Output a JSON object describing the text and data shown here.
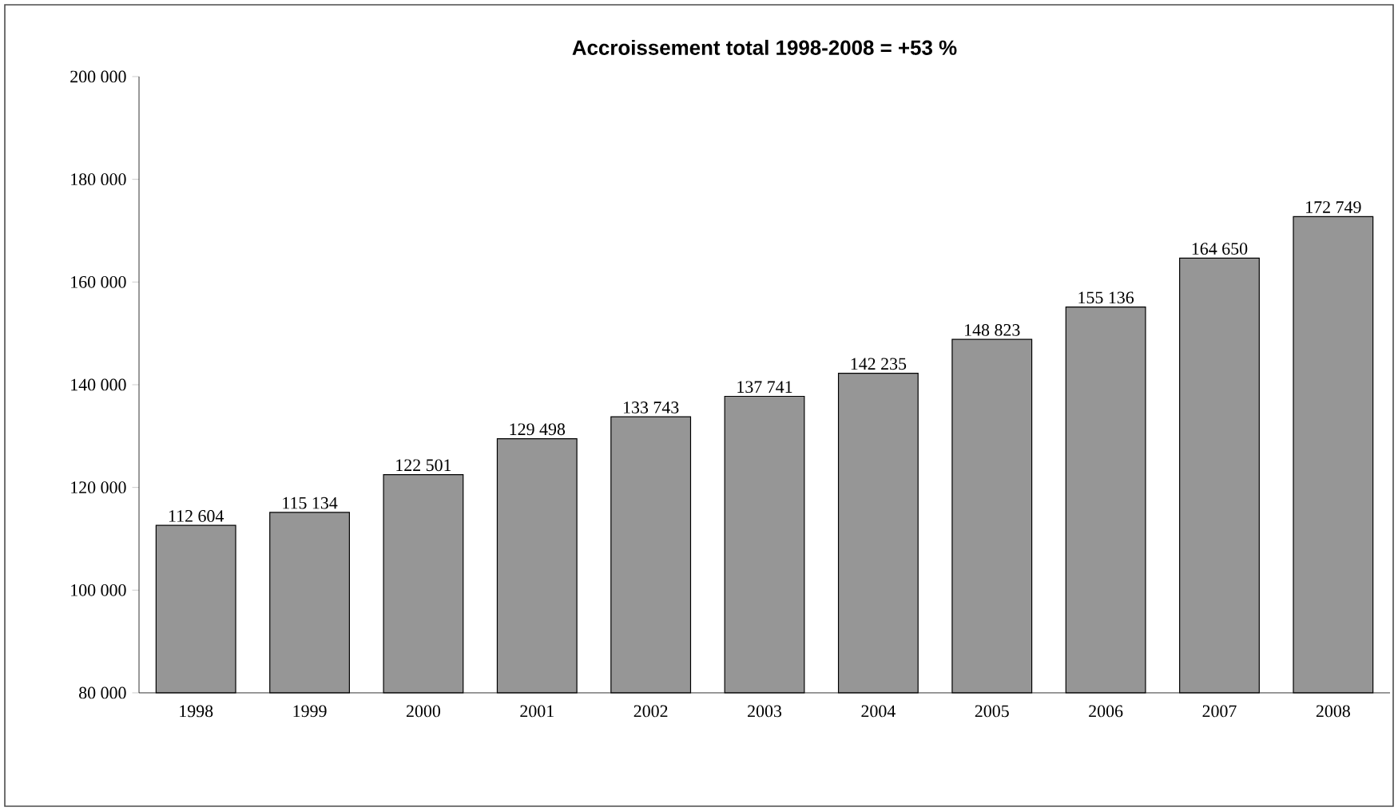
{
  "chart_data": {
    "type": "bar",
    "title": "Accroissement total 1998-2008 = +53 %",
    "categories": [
      "1998",
      "1999",
      "2000",
      "2001",
      "2002",
      "2003",
      "2004",
      "2005",
      "2006",
      "2007",
      "2008"
    ],
    "values": [
      112604,
      115134,
      122501,
      129498,
      133743,
      137741,
      142235,
      148823,
      155136,
      164650,
      172749
    ],
    "value_labels": [
      "112 604",
      "115 134",
      "122 501",
      "129 498",
      "133 743",
      "137 741",
      "142 235",
      "148 823",
      "155 136",
      "164 650",
      "172 749"
    ],
    "color": "#969696",
    "ylim": [
      80000,
      200000
    ],
    "yticks": [
      {
        "value": 80000,
        "label": "80 000"
      },
      {
        "value": 100000,
        "label": "100 000"
      },
      {
        "value": 120000,
        "label": "120 000"
      },
      {
        "value": 140000,
        "label": "140 000"
      },
      {
        "value": 160000,
        "label": "160 000"
      },
      {
        "value": 180000,
        "label": "180 000"
      },
      {
        "value": 200000,
        "label": "200 000"
      }
    ]
  }
}
